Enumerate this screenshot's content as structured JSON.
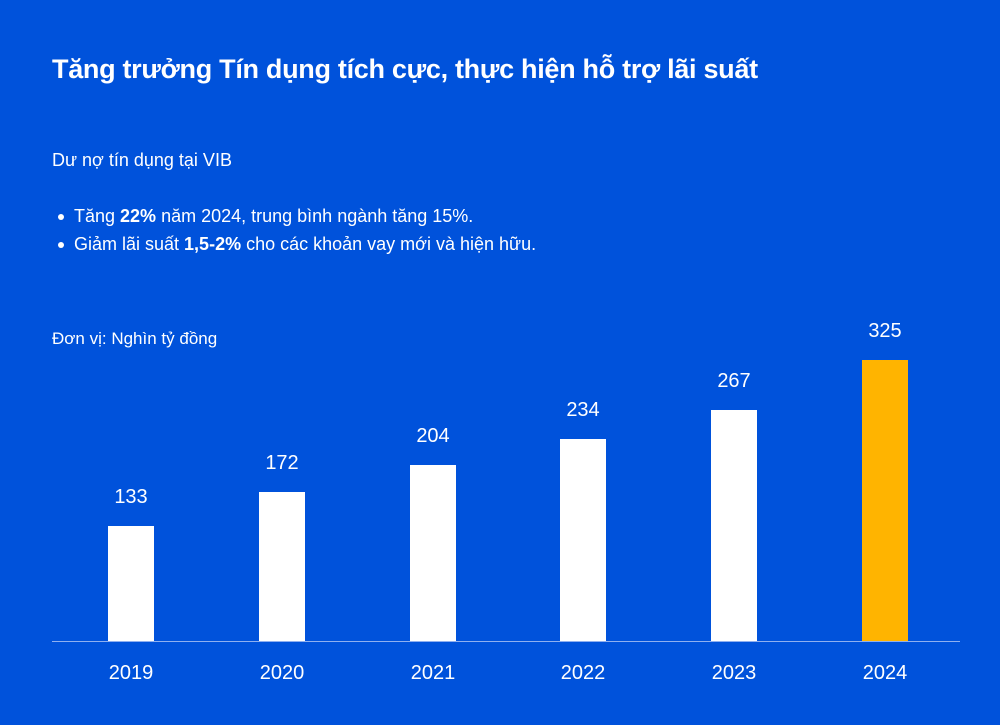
{
  "header": {
    "title": "Tăng trưởng Tín dụng tích cực, thực hiện hỗ trợ lãi suất"
  },
  "section": {
    "subtitle": "Dư nợ tín dụng tại VIB",
    "bullets": [
      {
        "pre": "Tăng ",
        "bold": "22%",
        "post": " năm 2024, trung bình ngành tăng 15%."
      },
      {
        "pre": "Giảm lãi suất ",
        "bold": "1,5-2%",
        "post": " cho các khoản vay mới và hiện hữu."
      }
    ],
    "unit_label": "Đơn vị: Nghìn tỷ đồng"
  },
  "colors": {
    "background": "#0052DB",
    "bar_default": "#FFFFFF",
    "bar_highlight": "#FFB400"
  },
  "chart_data": {
    "type": "bar",
    "title": "Dư nợ tín dụng tại VIB",
    "xlabel": "",
    "ylabel": "Nghìn tỷ đồng",
    "categories": [
      "2019",
      "2020",
      "2021",
      "2022",
      "2023",
      "2024"
    ],
    "values": [
      133,
      172,
      204,
      234,
      267,
      325
    ],
    "value_labels": [
      "133",
      "172",
      "204",
      "234",
      "267",
      "325"
    ],
    "highlight_index": 5,
    "ylim": [
      0,
      325
    ],
    "grid": false,
    "legend": null
  }
}
